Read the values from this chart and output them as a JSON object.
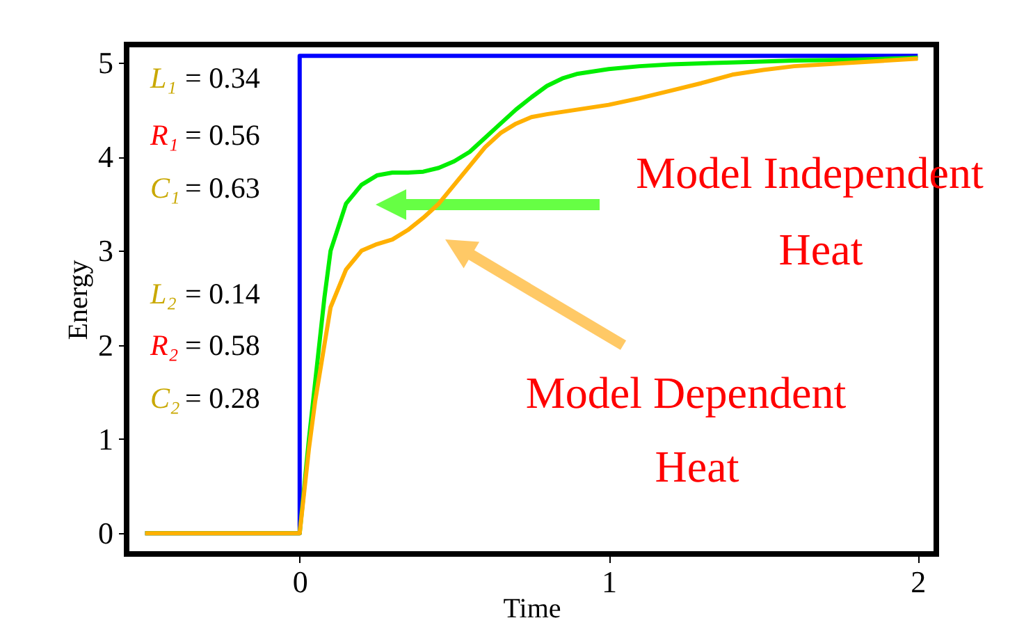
{
  "chart_data": {
    "type": "line",
    "xlabel": "Time",
    "ylabel": "Energy",
    "xlim": [
      -0.56,
      2.06
    ],
    "ylim": [
      -0.22,
      5.19
    ],
    "xticks": [
      0,
      1,
      2
    ],
    "yticks": [
      0,
      1,
      2,
      3,
      4,
      5
    ],
    "grid": false,
    "marker": "none",
    "line_style": "solid",
    "series": [
      {
        "color": "#0000ff",
        "x": [
          -0.5,
          0,
          0,
          2
        ],
        "values": [
          0,
          0,
          5.07,
          5.07
        ]
      },
      {
        "color": "#00ee00",
        "x": [
          -0.5,
          0,
          0.03,
          0.05,
          0.08,
          0.1,
          0.15,
          0.2,
          0.25,
          0.3,
          0.35,
          0.4,
          0.45,
          0.5,
          0.55,
          0.6,
          0.65,
          0.7,
          0.75,
          0.8,
          0.85,
          0.9,
          1.0,
          1.1,
          1.2,
          1.4,
          1.6,
          1.8,
          2.0
        ],
        "values": [
          0,
          0,
          1.0,
          1.6,
          2.5,
          3.0,
          3.5,
          3.7,
          3.8,
          3.83,
          3.83,
          3.84,
          3.88,
          3.95,
          4.05,
          4.2,
          4.35,
          4.5,
          4.63,
          4.75,
          4.83,
          4.88,
          4.93,
          4.96,
          4.98,
          5.0,
          5.02,
          5.03,
          5.05
        ]
      },
      {
        "color": "#ffb000",
        "x": [
          -0.5,
          0,
          0.03,
          0.05,
          0.08,
          0.1,
          0.15,
          0.2,
          0.25,
          0.3,
          0.35,
          0.4,
          0.45,
          0.5,
          0.55,
          0.6,
          0.65,
          0.7,
          0.75,
          0.8,
          0.9,
          1.0,
          1.1,
          1.2,
          1.3,
          1.4,
          1.5,
          1.6,
          1.8,
          2.0
        ],
        "values": [
          0,
          0,
          0.9,
          1.4,
          2.0,
          2.4,
          2.8,
          3.0,
          3.07,
          3.12,
          3.22,
          3.35,
          3.5,
          3.7,
          3.9,
          4.1,
          4.25,
          4.35,
          4.42,
          4.45,
          4.5,
          4.55,
          4.62,
          4.7,
          4.78,
          4.87,
          4.92,
          4.96,
          5.0,
          5.04
        ]
      }
    ],
    "annotations": [
      "L₁ = 0.34",
      "R₁ = 0.56",
      "C₁ = 0.63",
      "L₂ = 0.14",
      "R₂ = 0.58",
      "C₂ = 0.28",
      "Model Independent Heat",
      "Model Dependent Heat"
    ]
  }
}
